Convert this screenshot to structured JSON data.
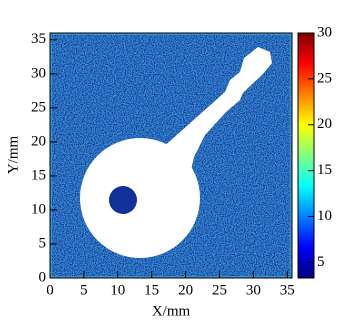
{
  "chart_data": {
    "type": "heatmap",
    "x_label": "X/mm",
    "y_label": "Y/mm",
    "xlim": [
      0,
      35.7
    ],
    "xticks": [
      0,
      5,
      10,
      15,
      20,
      25,
      30,
      35
    ],
    "ylim": [
      0,
      36
    ],
    "yticks": [
      0,
      5,
      10,
      15,
      20,
      25,
      30,
      35
    ],
    "zlim": [
      3.3,
      30
    ],
    "zticks": [
      5,
      10,
      15,
      20,
      25,
      30
    ],
    "colorscale": [
      "#000080",
      "#0000ff",
      "#0080ff",
      "#00ffff",
      "#80ff80",
      "#ffff00",
      "#ff8000",
      "#ff0000",
      "#800000"
    ]
  }
}
